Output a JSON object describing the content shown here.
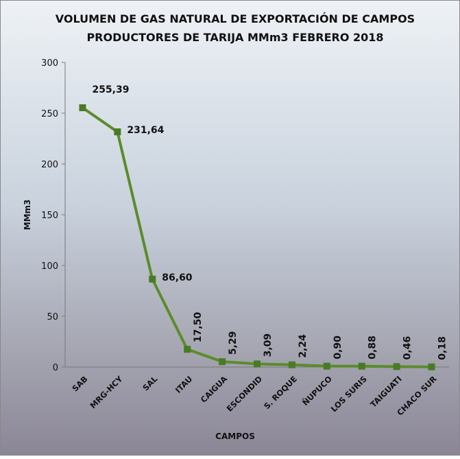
{
  "chart_data": {
    "type": "line",
    "title": [
      "VOLUMEN DE GAS NATURAL DE EXPORTACIÓN DE CAMPOS",
      "PRODUCTORES DE TARIJA MMm3 FEBRERO 2018"
    ],
    "x_label": "CAMPOS",
    "y_label": "MMm3",
    "categories": [
      "SAB",
      "MRG-HCY",
      "SAL",
      "ITAU",
      "CAIGUA",
      "ESCONDID",
      "S. ROQUE",
      "ÑUPUCO",
      "LOS SURIS",
      "TAIGUATI",
      "CHACO SUR"
    ],
    "series": [
      {
        "name": "MMm3",
        "color": "#5b8c2a",
        "values": [
          255.39,
          231.64,
          86.6,
          17.5,
          5.29,
          3.09,
          2.24,
          0.9,
          0.88,
          0.46,
          0.18
        ],
        "value_labels": [
          "255,39",
          "231,64",
          "86,60",
          "17,50",
          "5,29",
          "3,09",
          "2,24",
          "0,90",
          "0,88",
          "0,46",
          "0,18"
        ]
      }
    ],
    "ylim": [
      0,
      300
    ],
    "yticks": [
      0,
      50,
      100,
      150,
      200,
      250,
      300
    ]
  }
}
